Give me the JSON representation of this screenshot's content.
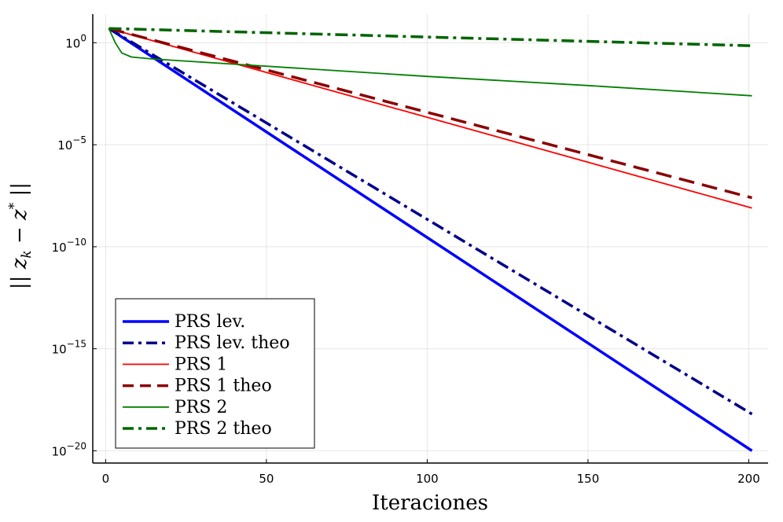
{
  "chart_data": {
    "type": "line",
    "title": "",
    "xlabel": "Iteraciones",
    "ylabel": "|| z_k − z* ||",
    "ylabel_parts": {
      "open": "|| ",
      "z1": "z",
      "sub": "k",
      "minus": " − ",
      "z2": "z",
      "sup": "*",
      "close": " ||"
    },
    "xscale": "linear",
    "yscale": "log10",
    "xlim": [
      -4,
      206
    ],
    "ylim_log10": [
      -20.6,
      1.4
    ],
    "x_ticks": [
      0,
      50,
      100,
      150,
      200
    ],
    "x_tick_labels": [
      "0",
      "50",
      "100",
      "150",
      "200"
    ],
    "y_ticks_log10": [
      0,
      -5,
      -10,
      -15,
      -20
    ],
    "y_tick_labels": [
      {
        "base": "10",
        "exp": "0"
      },
      {
        "base": "10",
        "exp": "−5"
      },
      {
        "base": "10",
        "exp": "−10"
      },
      {
        "base": "10",
        "exp": "−15"
      },
      {
        "base": "10",
        "exp": "−20"
      }
    ],
    "grid": true,
    "legend_position": "bottom-left",
    "series": [
      {
        "name": "PRS lev.",
        "color": "#0000ff",
        "dash": "solid",
        "width": 3.5,
        "x": [
          1,
          201
        ],
        "log10_y": [
          0.7,
          -20
        ]
      },
      {
        "name": "PRS lev. theo",
        "color": "#00008b",
        "dash": "dashdot",
        "width": 3.5,
        "x": [
          1,
          201
        ],
        "log10_y": [
          0.7,
          -18.2
        ]
      },
      {
        "name": "PRS 1",
        "color": "#ff0000",
        "dash": "solid",
        "width": 1.8,
        "x": [
          1,
          201
        ],
        "log10_y": [
          0.7,
          -8.1
        ]
      },
      {
        "name": "PRS 1 theo",
        "color": "#8b0000",
        "dash": "dash",
        "width": 3.5,
        "x": [
          1,
          201
        ],
        "log10_y": [
          0.7,
          -7.6
        ]
      },
      {
        "name": "PRS 2",
        "color": "#008000",
        "dash": "solid",
        "width": 1.8,
        "x": [
          1,
          3,
          5,
          8,
          15,
          40,
          100,
          150,
          201
        ],
        "log10_y": [
          0.7,
          0,
          -0.5,
          -0.7,
          -0.8,
          -1.05,
          -1.65,
          -2.1,
          -2.6
        ]
      },
      {
        "name": "PRS 2 theo",
        "color": "#006400",
        "dash": "dashdot",
        "width": 3.5,
        "x": [
          1,
          201
        ],
        "log10_y": [
          0.7,
          -0.15
        ]
      }
    ]
  }
}
